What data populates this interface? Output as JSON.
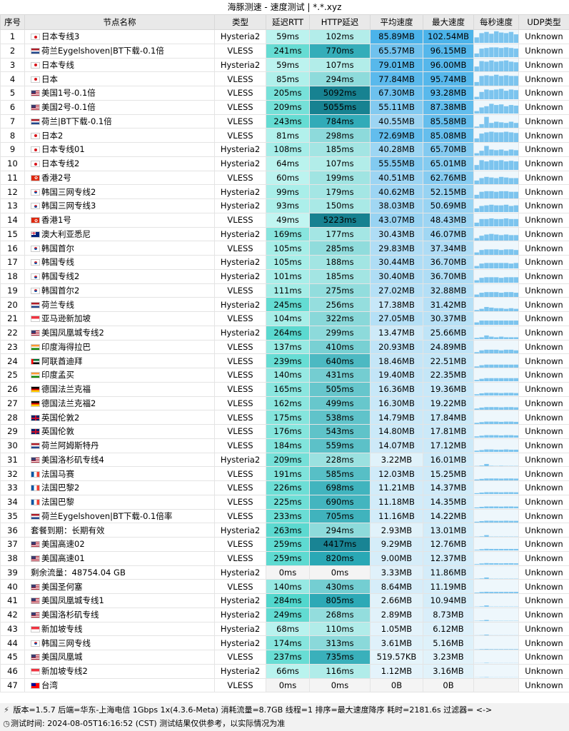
{
  "window": {
    "title": "海豚测速 - 速度测试 | *.*.xyz"
  },
  "headers": [
    "序号",
    "节点名称",
    "类型",
    "延迟RTT",
    "HTTP延迟",
    "平均速度",
    "最大速度",
    "每秒速度",
    "UDP类型"
  ],
  "rows": [
    {
      "idx": "1",
      "flag": "jp",
      "name": "日本专线3",
      "type": "Hysteria2",
      "rtt": "59ms",
      "http": "102ms",
      "avg": "85.89MB",
      "max": "102.54MB",
      "udp": "Unknown",
      "spark": [
        0.45,
        0.8,
        0.9,
        0.75,
        0.95,
        0.85,
        0.8,
        0.9,
        0.7
      ]
    },
    {
      "idx": "2",
      "flag": "nl",
      "name": "荷兰Eygelshoven|BT下载-0.1倍",
      "type": "VLESS",
      "rtt": "241ms",
      "http": "770ms",
      "avg": "65.57MB",
      "max": "96.15MB",
      "udp": "Unknown",
      "spark": [
        0.3,
        0.7,
        0.75,
        0.8,
        0.8,
        0.75,
        0.8,
        0.75,
        0.7
      ]
    },
    {
      "idx": "3",
      "flag": "jp",
      "name": "日本专线",
      "type": "Hysteria2",
      "rtt": "59ms",
      "http": "107ms",
      "avg": "79.01MB",
      "max": "96.00MB",
      "udp": "Unknown",
      "spark": [
        0.4,
        0.85,
        0.8,
        0.9,
        0.8,
        0.85,
        0.9,
        0.8,
        0.75
      ]
    },
    {
      "idx": "4",
      "flag": "jp",
      "name": "日本",
      "type": "VLESS",
      "rtt": "85ms",
      "http": "294ms",
      "avg": "77.84MB",
      "max": "95.74MB",
      "udp": "Unknown",
      "spark": [
        0.3,
        0.8,
        0.85,
        0.8,
        0.9,
        0.8,
        0.85,
        0.8,
        0.8
      ]
    },
    {
      "idx": "5",
      "flag": "us",
      "name": "美国1号-0.1倍",
      "type": "VLESS",
      "rtt": "205ms",
      "http": "5092ms",
      "avg": "67.30MB",
      "max": "93.28MB",
      "udp": "Unknown",
      "spark": [
        0.2,
        0.6,
        0.8,
        0.75,
        0.8,
        0.85,
        0.7,
        0.8,
        0.75
      ]
    },
    {
      "idx": "6",
      "flag": "us",
      "name": "美国2号-0.1倍",
      "type": "VLESS",
      "rtt": "209ms",
      "http": "5055ms",
      "avg": "55.11MB",
      "max": "87.38MB",
      "udp": "Unknown",
      "spark": [
        0.2,
        0.5,
        0.6,
        0.8,
        0.7,
        0.75,
        0.6,
        0.7,
        0.65
      ]
    },
    {
      "idx": "7",
      "flag": "nl",
      "name": "荷兰|BT下载-0.1倍",
      "type": "VLESS",
      "rtt": "243ms",
      "http": "784ms",
      "avg": "40.55MB",
      "max": "85.58MB",
      "udp": "Unknown",
      "spark": [
        0.1,
        0.3,
        0.9,
        0.4,
        0.5,
        0.45,
        0.4,
        0.5,
        0.4
      ]
    },
    {
      "idx": "8",
      "flag": "jp",
      "name": "日本2",
      "type": "VLESS",
      "rtt": "81ms",
      "http": "298ms",
      "avg": "72.69MB",
      "max": "85.08MB",
      "udp": "Unknown",
      "spark": [
        0.3,
        0.7,
        0.8,
        0.85,
        0.8,
        0.8,
        0.85,
        0.8,
        0.75
      ]
    },
    {
      "idx": "9",
      "flag": "jp",
      "name": "日本专线01",
      "type": "Hysteria2",
      "rtt": "108ms",
      "http": "185ms",
      "avg": "40.28MB",
      "max": "65.70MB",
      "udp": "Unknown",
      "spark": [
        0.2,
        0.4,
        0.8,
        0.5,
        0.45,
        0.5,
        0.4,
        0.5,
        0.45
      ]
    },
    {
      "idx": "10",
      "flag": "jp",
      "name": "日本专线2",
      "type": "Hysteria2",
      "rtt": "64ms",
      "http": "107ms",
      "avg": "55.55MB",
      "max": "65.01MB",
      "udp": "Unknown",
      "spark": [
        0.4,
        0.8,
        0.7,
        0.8,
        0.75,
        0.8,
        0.7,
        0.75,
        0.7
      ]
    },
    {
      "idx": "11",
      "flag": "hk",
      "name": "香港2号",
      "type": "VLESS",
      "rtt": "60ms",
      "http": "199ms",
      "avg": "40.51MB",
      "max": "62.76MB",
      "udp": "Unknown",
      "spark": [
        0.3,
        0.5,
        0.6,
        0.55,
        0.5,
        0.6,
        0.55,
        0.5,
        0.5
      ]
    },
    {
      "idx": "12",
      "flag": "kr",
      "name": "韩国三网专线2",
      "type": "Hysteria2",
      "rtt": "99ms",
      "http": "179ms",
      "avg": "40.62MB",
      "max": "52.15MB",
      "udp": "Unknown",
      "spark": [
        0.3,
        0.55,
        0.6,
        0.6,
        0.55,
        0.6,
        0.6,
        0.55,
        0.55
      ]
    },
    {
      "idx": "13",
      "flag": "kr",
      "name": "韩国三网专线3",
      "type": "Hysteria2",
      "rtt": "93ms",
      "http": "150ms",
      "avg": "38.03MB",
      "max": "50.69MB",
      "udp": "Unknown",
      "spark": [
        0.3,
        0.5,
        0.55,
        0.6,
        0.55,
        0.55,
        0.6,
        0.5,
        0.55
      ]
    },
    {
      "idx": "14",
      "flag": "hk",
      "name": "香港1号",
      "type": "VLESS",
      "rtt": "49ms",
      "http": "5223ms",
      "avg": "43.07MB",
      "max": "48.43MB",
      "udp": "Unknown",
      "spark": [
        0.3,
        0.6,
        0.6,
        0.65,
        0.6,
        0.6,
        0.65,
        0.6,
        0.6
      ]
    },
    {
      "idx": "15",
      "flag": "au",
      "name": "澳大利亚悉尼",
      "type": "Hysteria2",
      "rtt": "169ms",
      "http": "177ms",
      "avg": "30.43MB",
      "max": "46.07MB",
      "udp": "Unknown",
      "spark": [
        0.2,
        0.4,
        0.5,
        0.55,
        0.5,
        0.45,
        0.5,
        0.45,
        0.45
      ]
    },
    {
      "idx": "16",
      "flag": "kr",
      "name": "韩国首尔",
      "type": "VLESS",
      "rtt": "105ms",
      "http": "285ms",
      "avg": "29.83MB",
      "max": "37.34MB",
      "udp": "Unknown",
      "spark": [
        0.2,
        0.4,
        0.45,
        0.45,
        0.45,
        0.4,
        0.45,
        0.45,
        0.4
      ]
    },
    {
      "idx": "17",
      "flag": "kr",
      "name": "韩国专线",
      "type": "Hysteria2",
      "rtt": "105ms",
      "http": "188ms",
      "avg": "30.44MB",
      "max": "36.70MB",
      "udp": "Unknown",
      "spark": [
        0.2,
        0.4,
        0.45,
        0.45,
        0.45,
        0.45,
        0.45,
        0.4,
        0.45
      ]
    },
    {
      "idx": "18",
      "flag": "kr",
      "name": "韩国专线2",
      "type": "Hysteria2",
      "rtt": "101ms",
      "http": "185ms",
      "avg": "30.40MB",
      "max": "36.70MB",
      "udp": "Unknown",
      "spark": [
        0.2,
        0.4,
        0.45,
        0.45,
        0.45,
        0.4,
        0.45,
        0.45,
        0.45
      ]
    },
    {
      "idx": "19",
      "flag": "kr",
      "name": "韩国首尔2",
      "type": "VLESS",
      "rtt": "111ms",
      "http": "275ms",
      "avg": "27.02MB",
      "max": "32.88MB",
      "udp": "Unknown",
      "spark": [
        0.2,
        0.35,
        0.4,
        0.4,
        0.4,
        0.35,
        0.4,
        0.4,
        0.35
      ]
    },
    {
      "idx": "20",
      "flag": "nl",
      "name": "荷兰专线",
      "type": "Hysteria2",
      "rtt": "245ms",
      "http": "256ms",
      "avg": "17.38MB",
      "max": "31.42MB",
      "udp": "Unknown",
      "spark": [
        0.1,
        0.2,
        0.35,
        0.3,
        0.25,
        0.25,
        0.2,
        0.25,
        0.2
      ]
    },
    {
      "idx": "21",
      "flag": "sg",
      "name": "亚马逊新加坡",
      "type": "VLESS",
      "rtt": "104ms",
      "http": "322ms",
      "avg": "27.05MB",
      "max": "30.37MB",
      "udp": "Unknown",
      "spark": [
        0.2,
        0.35,
        0.35,
        0.35,
        0.35,
        0.35,
        0.35,
        0.35,
        0.35
      ]
    },
    {
      "idx": "22",
      "flag": "us",
      "name": "美国凤凰城专线2",
      "type": "Hysteria2",
      "rtt": "264ms",
      "http": "299ms",
      "avg": "13.47MB",
      "max": "25.66MB",
      "udp": "Unknown",
      "spark": [
        0.1,
        0.15,
        0.3,
        0.2,
        0.15,
        0.2,
        0.15,
        0.15,
        0.15
      ]
    },
    {
      "idx": "23",
      "flag": "in",
      "name": "印度海得拉巴",
      "type": "VLESS",
      "rtt": "137ms",
      "http": "410ms",
      "avg": "20.93MB",
      "max": "24.89MB",
      "udp": "Unknown",
      "spark": [
        0.1,
        0.25,
        0.3,
        0.3,
        0.3,
        0.25,
        0.3,
        0.3,
        0.25
      ]
    },
    {
      "idx": "24",
      "flag": "ae",
      "name": "阿联酋迪拜",
      "type": "VLESS",
      "rtt": "239ms",
      "http": "640ms",
      "avg": "18.46MB",
      "max": "22.51MB",
      "udp": "Unknown",
      "spark": [
        0.1,
        0.2,
        0.25,
        0.25,
        0.25,
        0.25,
        0.25,
        0.25,
        0.25
      ]
    },
    {
      "idx": "25",
      "flag": "in",
      "name": "印度孟买",
      "type": "VLESS",
      "rtt": "140ms",
      "http": "431ms",
      "avg": "19.40MB",
      "max": "22.35MB",
      "udp": "Unknown",
      "spark": [
        0.1,
        0.2,
        0.25,
        0.25,
        0.25,
        0.25,
        0.25,
        0.25,
        0.25
      ]
    },
    {
      "idx": "26",
      "flag": "de",
      "name": "德国法兰克福",
      "type": "VLESS",
      "rtt": "165ms",
      "http": "505ms",
      "avg": "16.36MB",
      "max": "19.36MB",
      "udp": "Unknown",
      "spark": [
        0.1,
        0.18,
        0.22,
        0.22,
        0.22,
        0.2,
        0.22,
        0.22,
        0.2
      ]
    },
    {
      "idx": "27",
      "flag": "de",
      "name": "德国法兰克福2",
      "type": "VLESS",
      "rtt": "162ms",
      "http": "499ms",
      "avg": "16.30MB",
      "max": "19.22MB",
      "udp": "Unknown",
      "spark": [
        0.1,
        0.18,
        0.22,
        0.22,
        0.22,
        0.2,
        0.22,
        0.22,
        0.2
      ]
    },
    {
      "idx": "28",
      "flag": "gb",
      "name": "英国伦敦2",
      "type": "VLESS",
      "rtt": "175ms",
      "http": "538ms",
      "avg": "14.79MB",
      "max": "17.84MB",
      "udp": "Unknown",
      "spark": [
        0.1,
        0.16,
        0.2,
        0.2,
        0.2,
        0.18,
        0.2,
        0.2,
        0.18
      ]
    },
    {
      "idx": "29",
      "flag": "gb",
      "name": "英国伦敦",
      "type": "VLESS",
      "rtt": "176ms",
      "http": "543ms",
      "avg": "14.80MB",
      "max": "17.81MB",
      "udp": "Unknown",
      "spark": [
        0.1,
        0.16,
        0.2,
        0.2,
        0.2,
        0.18,
        0.2,
        0.2,
        0.18
      ]
    },
    {
      "idx": "30",
      "flag": "nl",
      "name": "荷兰阿姆斯特丹",
      "type": "VLESS",
      "rtt": "184ms",
      "http": "559ms",
      "avg": "14.07MB",
      "max": "17.12MB",
      "udp": "Unknown",
      "spark": [
        0.1,
        0.15,
        0.2,
        0.2,
        0.18,
        0.18,
        0.2,
        0.18,
        0.18
      ]
    },
    {
      "idx": "31",
      "flag": "us",
      "name": "美国洛杉矶专线4",
      "type": "Hysteria2",
      "rtt": "209ms",
      "http": "228ms",
      "avg": "3.22MB",
      "max": "16.01MB",
      "udp": "Unknown",
      "spark": [
        0.02,
        0.05,
        0.18,
        0.03,
        0.02,
        0.03,
        0.02,
        0.02,
        0.02
      ]
    },
    {
      "idx": "32",
      "flag": "fr",
      "name": "法国马赛",
      "type": "VLESS",
      "rtt": "191ms",
      "http": "585ms",
      "avg": "12.03MB",
      "max": "15.25MB",
      "udp": "Unknown",
      "spark": [
        0.08,
        0.13,
        0.16,
        0.16,
        0.16,
        0.15,
        0.16,
        0.16,
        0.15
      ]
    },
    {
      "idx": "33",
      "flag": "fr",
      "name": "法国巴黎2",
      "type": "VLESS",
      "rtt": "226ms",
      "http": "698ms",
      "avg": "11.21MB",
      "max": "14.37MB",
      "udp": "Unknown",
      "spark": [
        0.07,
        0.12,
        0.15,
        0.15,
        0.15,
        0.14,
        0.15,
        0.15,
        0.14
      ]
    },
    {
      "idx": "34",
      "flag": "fr",
      "name": "法国巴黎",
      "type": "VLESS",
      "rtt": "225ms",
      "http": "690ms",
      "avg": "11.18MB",
      "max": "14.35MB",
      "udp": "Unknown",
      "spark": [
        0.07,
        0.12,
        0.15,
        0.15,
        0.15,
        0.14,
        0.15,
        0.15,
        0.14
      ]
    },
    {
      "idx": "35",
      "flag": "nl",
      "name": "荷兰Eygelshoven|BT下载-0.1倍率",
      "type": "VLESS",
      "rtt": "233ms",
      "http": "705ms",
      "avg": "11.16MB",
      "max": "14.22MB",
      "udp": "Unknown",
      "spark": [
        0.07,
        0.12,
        0.15,
        0.15,
        0.14,
        0.14,
        0.15,
        0.14,
        0.14
      ]
    },
    {
      "idx": "36",
      "flag": "",
      "name": "套餐到期：长期有效",
      "type": "Hysteria2",
      "rtt": "263ms",
      "http": "294ms",
      "avg": "2.93MB",
      "max": "13.01MB",
      "udp": "Unknown",
      "spark": [
        0.02,
        0.04,
        0.14,
        0.02,
        0.02,
        0.02,
        0.02,
        0.02,
        0.02
      ]
    },
    {
      "idx": "37",
      "flag": "us",
      "name": "美国高速02",
      "type": "VLESS",
      "rtt": "259ms",
      "http": "4417ms",
      "avg": "9.29MB",
      "max": "12.76MB",
      "udp": "Unknown",
      "spark": [
        0.05,
        0.1,
        0.13,
        0.12,
        0.12,
        0.12,
        0.12,
        0.12,
        0.12
      ]
    },
    {
      "idx": "38",
      "flag": "us",
      "name": "美国高速01",
      "type": "VLESS",
      "rtt": "259ms",
      "http": "820ms",
      "avg": "9.00MB",
      "max": "12.37MB",
      "udp": "Unknown",
      "spark": [
        0.05,
        0.1,
        0.13,
        0.12,
        0.12,
        0.11,
        0.12,
        0.12,
        0.11
      ]
    },
    {
      "idx": "39",
      "flag": "",
      "name": "剩余流量：48754.04 GB",
      "type": "Hysteria2",
      "rtt": "0ms",
      "http": "0ms",
      "avg": "3.33MB",
      "max": "11.86MB",
      "udp": "Unknown",
      "spark": [
        0.02,
        0.04,
        0.12,
        0.02,
        0.02,
        0.02,
        0.02,
        0.02,
        0.02
      ]
    },
    {
      "idx": "40",
      "flag": "us",
      "name": "美国圣何塞",
      "type": "VLESS",
      "rtt": "140ms",
      "http": "430ms",
      "avg": "8.64MB",
      "max": "11.19MB",
      "udp": "Unknown",
      "spark": [
        0.05,
        0.1,
        0.12,
        0.11,
        0.11,
        0.11,
        0.11,
        0.11,
        0.11
      ]
    },
    {
      "idx": "41",
      "flag": "us",
      "name": "美国凤凰城专线1",
      "type": "Hysteria2",
      "rtt": "284ms",
      "http": "805ms",
      "avg": "2.66MB",
      "max": "10.94MB",
      "udp": "Unknown",
      "spark": [
        0.02,
        0.04,
        0.11,
        0.02,
        0.02,
        0.02,
        0.02,
        0.02,
        0.02
      ]
    },
    {
      "idx": "42",
      "flag": "us",
      "name": "美国洛杉矶专线",
      "type": "Hysteria2",
      "rtt": "249ms",
      "http": "268ms",
      "avg": "2.89MB",
      "max": "8.73MB",
      "udp": "Unknown",
      "spark": [
        0.02,
        0.04,
        0.09,
        0.02,
        0.02,
        0.02,
        0.02,
        0.02,
        0.02
      ]
    },
    {
      "idx": "43",
      "flag": "sg",
      "name": "新加坡专线",
      "type": "Hysteria2",
      "rtt": "68ms",
      "http": "110ms",
      "avg": "1.05MB",
      "max": "6.12MB",
      "udp": "Unknown",
      "spark": [
        0.01,
        0.02,
        0.06,
        0.01,
        0.01,
        0.01,
        0.01,
        0.01,
        0.01
      ]
    },
    {
      "idx": "44",
      "flag": "kr",
      "name": "韩国三网专线",
      "type": "Hysteria2",
      "rtt": "174ms",
      "http": "313ms",
      "avg": "3.61MB",
      "max": "5.16MB",
      "udp": "Unknown",
      "spark": [
        0.02,
        0.04,
        0.05,
        0.04,
        0.04,
        0.04,
        0.04,
        0.04,
        0.04
      ]
    },
    {
      "idx": "45",
      "flag": "us",
      "name": "美国凤凰城",
      "type": "VLESS",
      "rtt": "237ms",
      "http": "735ms",
      "avg": "519.57KB",
      "max": "3.23MB",
      "udp": "Unknown",
      "spark": [
        0.01,
        0.01,
        0.03,
        0.01,
        0.01,
        0.01,
        0.01,
        0.01,
        0.01
      ]
    },
    {
      "idx": "46",
      "flag": "sg",
      "name": "新加坡专线2",
      "type": "Hysteria2",
      "rtt": "66ms",
      "http": "116ms",
      "avg": "1.12MB",
      "max": "3.16MB",
      "udp": "Unknown",
      "spark": [
        0.01,
        0.02,
        0.03,
        0.01,
        0.01,
        0.01,
        0.01,
        0.01,
        0.01
      ]
    },
    {
      "idx": "47",
      "flag": "tw",
      "name": "台湾",
      "type": "VLESS",
      "rtt": "0ms",
      "http": "0ms",
      "avg": "0B",
      "max": "0B",
      "udp": "Unknown",
      "spark": [
        0,
        0,
        0,
        0,
        0,
        0,
        0,
        0,
        0
      ]
    }
  ],
  "footer": {
    "line1": "版本=1.5.7  后端=华东-上海电信 1Gbps 1x(4.3.6-Meta) 消耗流量=8.7GB  线程=1  排序=最大速度降序  耗时=2181.6s  过滤器= <->",
    "line2": "测试时间: 2024-08-05T16:16:52 (CST)  测试结果仅供参考，以实际情况为准"
  }
}
